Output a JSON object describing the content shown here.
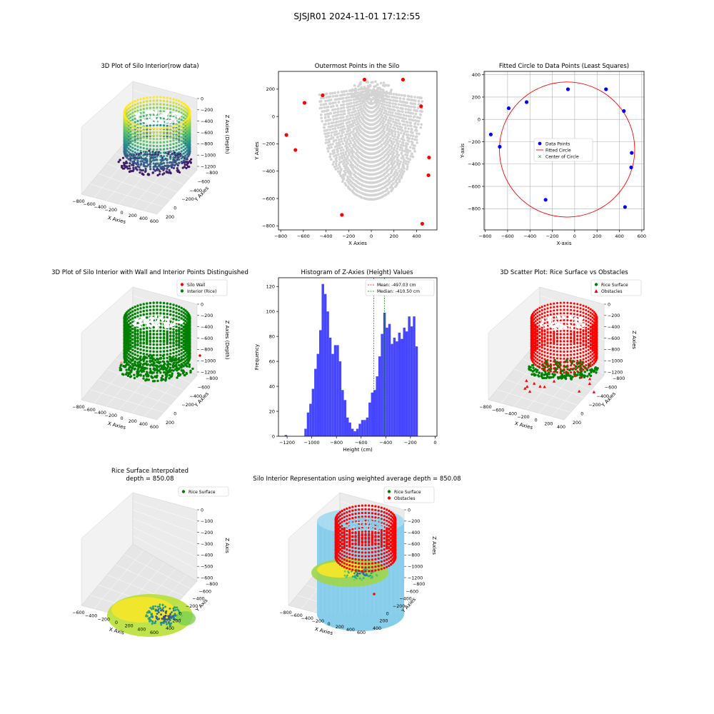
{
  "figure": {
    "suptitle": "SJSJR01 2024-11-01 17:12:55"
  },
  "colors": {
    "gray": "#d3d3d3",
    "red": "#ff0000",
    "blue": "#0000ff",
    "green": "#008000",
    "hist": "#4646ff",
    "sky": "#87ceeb",
    "viridis_low": "#3b1e69",
    "viridis_mid": "#21918c",
    "viridis_high": "#fde725"
  },
  "chart_data": [
    {
      "id": "p1",
      "type": "scatter3d",
      "title": "3D Plot of Silo Interior(row data)",
      "xlabel": "X Axies",
      "ylabel": "Y Axies",
      "zlabel": "Z Axies (Depth)",
      "x_ticks": [
        "−800",
        "−600",
        "−400",
        "−200",
        "0",
        "200",
        "400",
        "600"
      ],
      "y_ticks": [
        "−800",
        "−600",
        "−400",
        "−200",
        "0",
        "200"
      ],
      "z_ticks": [
        "0",
        "−200",
        "−400",
        "−600",
        "−800",
        "−1000",
        "−1200"
      ],
      "colormap": "viridis"
    },
    {
      "id": "p2",
      "type": "scatter",
      "title": "Outermost Points in the Silo",
      "xlabel": "X Axies",
      "ylabel": "Y Axies",
      "xlim": [
        -820,
        580
      ],
      "ylim": [
        -830,
        330
      ],
      "x_ticks": [
        -800,
        -600,
        -400,
        -200,
        0,
        200,
        400
      ],
      "y_ticks": [
        -800,
        -600,
        -400,
        -200,
        0,
        200
      ],
      "series": [
        {
          "color": "red",
          "points": [
            [
              -750,
              -135
            ],
            [
              -670,
              -245
            ],
            [
              -590,
              100
            ],
            [
              -430,
              155
            ],
            [
              -260,
              -720
            ],
            [
              -60,
              270
            ],
            [
              280,
              270
            ],
            [
              440,
              75
            ],
            [
              450,
              -785
            ],
            [
              510,
              -300
            ],
            [
              505,
              -430
            ]
          ]
        }
      ]
    },
    {
      "id": "p3",
      "type": "scatter",
      "title": "Fitted Circle to Data Points (Least Squares)",
      "xlabel": "X-axis",
      "ylabel": "Y-axis",
      "xlim": [
        -810,
        620
      ],
      "ylim": [
        -990,
        430
      ],
      "x_ticks": [
        -800,
        -600,
        -400,
        -200,
        0,
        200,
        400,
        600
      ],
      "y_ticks": [
        -800,
        -600,
        -400,
        -200,
        0,
        200,
        400
      ],
      "grid": true,
      "legend": [
        "Data Points",
        "Fitted Circle",
        "Center of Circle"
      ],
      "points": [
        [
          -750,
          -135
        ],
        [
          -670,
          -245
        ],
        [
          -590,
          100
        ],
        [
          -430,
          155
        ],
        [
          -260,
          -720
        ],
        [
          -60,
          270
        ],
        [
          280,
          270
        ],
        [
          440,
          75
        ],
        [
          450,
          -785
        ],
        [
          510,
          -300
        ],
        [
          505,
          -430
        ]
      ],
      "circle": {
        "cx": -68,
        "cy": -270,
        "r": 605
      }
    },
    {
      "id": "p4",
      "type": "scatter3d",
      "title": "3D Plot of Silo Interior with Wall and Interior Points Distinguished",
      "xlabel": "X Axies",
      "ylabel": "Y Axies",
      "zlabel": "Z Axies (Depth)",
      "x_ticks": [
        "−800",
        "−600",
        "−400",
        "−200",
        "0",
        "200",
        "400",
        "600"
      ],
      "y_ticks": [
        "−800",
        "−600",
        "−400",
        "−200",
        "0",
        "200"
      ],
      "z_ticks": [
        "0",
        "−200",
        "−400",
        "−600",
        "−800",
        "−1000",
        "−1200"
      ],
      "legend": [
        "Silo Wall",
        "Interior (Rice)"
      ]
    },
    {
      "id": "p5",
      "type": "bar",
      "title": "Histogram of Z-Axies (Height) Values",
      "xlabel": "Height (cm)",
      "ylabel": "Frequency",
      "xlim": [
        -1270,
        15
      ],
      "ylim": [
        0,
        127
      ],
      "x_ticks": [
        -1200,
        -1000,
        -800,
        -600,
        -400,
        -200,
        0
      ],
      "y_ticks": [
        0,
        20,
        40,
        60,
        80,
        100,
        120
      ],
      "bin_start": -1060,
      "bin_width": 20,
      "counts": [
        6,
        19,
        26,
        38,
        54,
        66,
        85,
        122,
        114,
        100,
        79,
        66,
        73,
        73,
        60,
        37,
        29,
        15,
        11,
        6,
        4,
        6,
        10,
        13,
        13,
        15,
        27,
        35,
        37,
        48,
        64,
        82,
        99,
        87,
        90,
        74,
        79,
        76,
        83,
        78,
        87,
        84,
        96,
        88,
        96,
        72
      ],
      "extra_bars": [
        {
          "x0": -1220,
          "x1": -1200,
          "count": 1
        }
      ],
      "mean": -497.03,
      "median": -410.5,
      "legend": [
        "Mean: -497.03 cm",
        "Median: -410.50 cm"
      ]
    },
    {
      "id": "p6",
      "type": "scatter3d",
      "title": "3D Scatter Plot: Rice Surface vs Obstacles",
      "xlabel": "X Axies",
      "ylabel": "Y Axies",
      "zlabel": "Z Axies",
      "x_ticks": [
        "−800",
        "−600",
        "−400",
        "−200",
        "0",
        "200",
        "400"
      ],
      "y_ticks": [
        "−800",
        "−600",
        "−400",
        "−200",
        "0",
        "200"
      ],
      "z_ticks": [
        "0",
        "−200",
        "−400",
        "−600",
        "−800",
        "−1000",
        "−1200"
      ],
      "legend": [
        "Rice Surface",
        "Obstacles"
      ]
    },
    {
      "id": "p7",
      "type": "surface3d",
      "title": "Rice Surface Interpolated",
      "subtitle": "depth = 850.08",
      "xlabel": "X Axis",
      "ylabel": "Y Axis",
      "zlabel": "Z Axis",
      "x_ticks": [
        "−600",
        "−400",
        "−200",
        "0",
        "200",
        "400",
        "600"
      ],
      "y_ticks": [
        "−800",
        "−600",
        "−400",
        "−200",
        "0",
        "200",
        "400"
      ],
      "z_ticks": [
        "0",
        "−100",
        "−200",
        "−300",
        "−400",
        "−500",
        "−600"
      ],
      "legend": [
        "Rice Surface"
      ]
    },
    {
      "id": "p8",
      "type": "scatter3d",
      "title": "Silo Interior Representation using weighted average depth = 850.08",
      "xlabel": "X Axies",
      "ylabel": "Y Axies",
      "zlabel": "Z Axies",
      "x_ticks": [
        "−800",
        "−600",
        "−400",
        "−200",
        "0",
        "200",
        "400",
        "600"
      ],
      "y_ticks": [
        "−800",
        "−600",
        "−400",
        "−200",
        "0",
        "200",
        "400"
      ],
      "z_ticks": [
        "0",
        "−200",
        "−400",
        "−600",
        "−800",
        "−1000",
        "−1200"
      ],
      "legend": [
        "Rice Surface",
        "Obstacles"
      ]
    }
  ]
}
